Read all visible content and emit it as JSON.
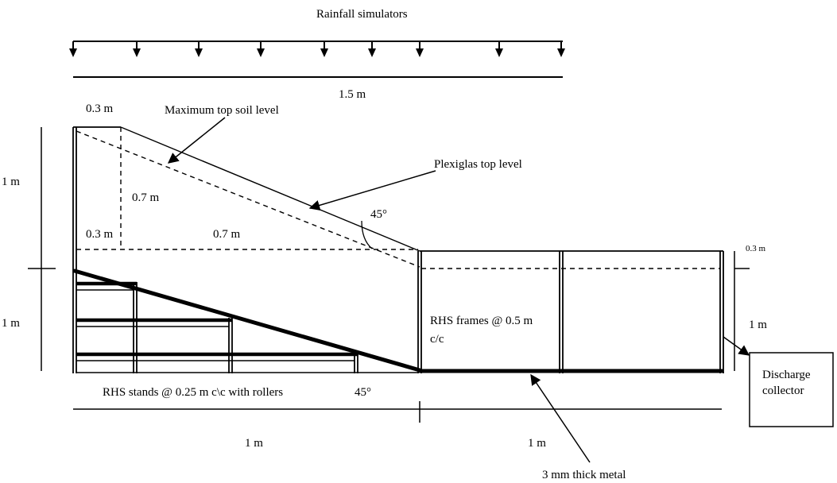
{
  "labels": {
    "rainfall": "Rainfall simulators",
    "span_top": "1.5 m",
    "width_03_top": "0.3 m",
    "max_top_soil": "Maximum top soil level",
    "plexiglas": "Plexiglas top level",
    "height_left_upper": "1 m",
    "depth_07": "0.7 m",
    "width_03_inner": "0.3 m",
    "width_07_inner": "0.7 m",
    "angle_upper": "45°",
    "right_03": "0.3 m",
    "height_left_lower": "1 m",
    "rhs_frames_line1": "RHS frames @ 0.5 m",
    "rhs_frames_line2": "c/c",
    "height_right": "1 m",
    "discharge_line1": "Discharge",
    "discharge_line2": "collector",
    "rhs_stands": "RHS stands @ 0.25 m c\\c with rollers",
    "angle_lower": "45°",
    "bottom_1m_left": "1 m",
    "bottom_1m_right": "1 m",
    "metal": "3 mm thick metal"
  },
  "simulator_count": 9
}
